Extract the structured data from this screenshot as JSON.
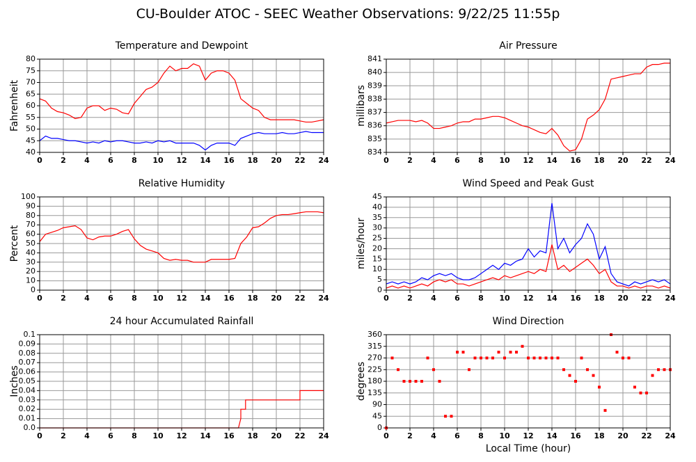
{
  "title": "CU-Boulder ATOC - SEEC Weather Observations: 9/22/25 11:55p",
  "chart_data": [
    {
      "type": "line",
      "title": "Temperature and Dewpoint",
      "ylabel": "Fahrenheit",
      "xlim": [
        0,
        24
      ],
      "xticks": [
        0,
        2,
        4,
        6,
        8,
        10,
        12,
        14,
        16,
        18,
        20,
        22,
        24
      ],
      "ylim": [
        40,
        80
      ],
      "yticks": [
        40,
        45,
        50,
        55,
        60,
        65,
        70,
        75,
        80
      ],
      "grid": true,
      "x": [
        0,
        0.5,
        1,
        1.5,
        2,
        2.5,
        3,
        3.5,
        4,
        4.5,
        5,
        5.5,
        6,
        6.5,
        7,
        7.5,
        8,
        8.5,
        9,
        9.5,
        10,
        10.5,
        11,
        11.5,
        12,
        12.5,
        13,
        13.5,
        14,
        14.5,
        15,
        15.5,
        16,
        16.5,
        17,
        17.5,
        18,
        18.5,
        19,
        19.5,
        20,
        20.5,
        21,
        21.5,
        22,
        22.5,
        23,
        23.5,
        24
      ],
      "series": [
        {
          "color": "#ff0000",
          "values": [
            63,
            62,
            59,
            57.5,
            57,
            56,
            54.5,
            55,
            59,
            60,
            60,
            58,
            59,
            58.5,
            57,
            56.5,
            61,
            64,
            67,
            68,
            70,
            74,
            77,
            75,
            76,
            76,
            78,
            77,
            71,
            74,
            75,
            75,
            74,
            71,
            63,
            61,
            59,
            58,
            55,
            54,
            54,
            54,
            54,
            54,
            53.5,
            53,
            53,
            53.5,
            54
          ]
        },
        {
          "color": "#0000ff",
          "values": [
            45,
            47,
            46,
            46,
            45.5,
            45,
            45,
            44.5,
            44,
            44.5,
            44,
            45,
            44.5,
            45,
            45,
            44.5,
            44,
            44,
            44.5,
            44,
            45,
            44.5,
            45,
            44,
            44,
            44,
            44,
            43,
            41,
            43,
            44,
            44,
            44,
            43,
            46,
            47,
            48,
            48.5,
            48,
            48,
            48,
            48.5,
            48,
            48,
            48.5,
            49,
            48.5,
            48.5,
            48.5
          ]
        }
      ]
    },
    {
      "type": "line",
      "title": "Air Pressure",
      "ylabel": "millibars",
      "xlim": [
        0,
        24
      ],
      "xticks": [
        0,
        2,
        4,
        6,
        8,
        10,
        12,
        14,
        16,
        18,
        20,
        22,
        24
      ],
      "ylim": [
        834,
        841
      ],
      "yticks": [
        834,
        835,
        836,
        837,
        838,
        839,
        840,
        841
      ],
      "grid": true,
      "x": [
        0,
        0.5,
        1,
        1.5,
        2,
        2.5,
        3,
        3.5,
        4,
        4.5,
        5,
        5.5,
        6,
        6.5,
        7,
        7.5,
        8,
        8.5,
        9,
        9.5,
        10,
        10.5,
        11,
        11.5,
        12,
        12.5,
        13,
        13.5,
        14,
        14.5,
        15,
        15.5,
        16,
        16.5,
        17,
        17.5,
        18,
        18.5,
        19,
        19.5,
        20,
        20.5,
        21,
        21.5,
        22,
        22.5,
        23,
        23.5,
        24
      ],
      "color": "#ff0000",
      "values": [
        836.2,
        836.3,
        836.4,
        836.4,
        836.4,
        836.3,
        836.4,
        836.2,
        835.8,
        835.8,
        835.9,
        836.0,
        836.2,
        836.3,
        836.3,
        836.5,
        836.5,
        836.6,
        836.7,
        836.7,
        836.6,
        836.4,
        836.2,
        836.0,
        835.9,
        835.7,
        835.5,
        835.4,
        835.8,
        835.3,
        834.5,
        834.1,
        834.2,
        835.0,
        836.5,
        836.8,
        837.2,
        838.0,
        839.5,
        839.6,
        839.7,
        839.8,
        839.9,
        839.9,
        840.4,
        840.6,
        840.6,
        840.7,
        840.7
      ]
    },
    {
      "type": "line",
      "title": "Relative Humidity",
      "ylabel": "Percent",
      "xlim": [
        0,
        24
      ],
      "xticks": [
        0,
        2,
        4,
        6,
        8,
        10,
        12,
        14,
        16,
        18,
        20,
        22,
        24
      ],
      "ylim": [
        0,
        100
      ],
      "yticks": [
        0,
        10,
        20,
        30,
        40,
        50,
        60,
        70,
        80,
        90,
        100
      ],
      "grid": true,
      "x": [
        0,
        0.5,
        1,
        1.5,
        2,
        2.5,
        3,
        3.5,
        4,
        4.5,
        5,
        5.5,
        6,
        6.5,
        7,
        7.5,
        8,
        8.5,
        9,
        9.5,
        10,
        10.5,
        11,
        11.5,
        12,
        12.5,
        13,
        13.5,
        14,
        14.5,
        15,
        15.5,
        16,
        16.5,
        17,
        17.5,
        18,
        18.5,
        19,
        19.5,
        20,
        20.5,
        21,
        21.5,
        22,
        22.5,
        23,
        23.5,
        24
      ],
      "color": "#ff0000",
      "values": [
        52,
        60,
        62,
        64,
        67,
        68,
        69,
        65,
        56,
        54,
        57,
        58,
        58,
        60,
        63,
        65,
        55,
        48,
        44,
        42,
        40,
        34,
        32,
        33,
        32,
        32,
        30,
        30,
        30,
        33,
        33,
        33,
        33,
        34,
        50,
        57,
        67,
        68,
        72,
        77,
        80,
        81,
        81,
        82,
        83,
        84,
        84,
        84,
        83
      ]
    },
    {
      "type": "line",
      "title": "Wind Speed and Peak Gust",
      "ylabel": "miles/hour",
      "xlim": [
        0,
        24
      ],
      "xticks": [
        0,
        2,
        4,
        6,
        8,
        10,
        12,
        14,
        16,
        18,
        20,
        22,
        24
      ],
      "ylim": [
        0,
        45
      ],
      "yticks": [
        0,
        5,
        10,
        15,
        20,
        25,
        30,
        35,
        40,
        45
      ],
      "grid": true,
      "x": [
        0,
        0.5,
        1,
        1.5,
        2,
        2.5,
        3,
        3.5,
        4,
        4.5,
        5,
        5.5,
        6,
        6.5,
        7,
        7.5,
        8,
        8.5,
        9,
        9.5,
        10,
        10.5,
        11,
        11.5,
        12,
        12.5,
        13,
        13.5,
        14,
        14.5,
        15,
        15.5,
        16,
        16.5,
        17,
        17.5,
        18,
        18.5,
        19,
        19.5,
        20,
        20.5,
        21,
        21.5,
        22,
        22.5,
        23,
        23.5,
        24
      ],
      "series": [
        {
          "color": "#0000ff",
          "values": [
            3,
            4,
            3,
            4,
            3,
            4,
            6,
            5,
            7,
            8,
            7,
            8,
            6,
            5,
            5,
            6,
            8,
            10,
            12,
            10,
            13,
            12,
            14,
            15,
            20,
            16,
            19,
            18,
            42,
            20,
            25,
            18,
            22,
            25,
            32,
            27,
            15,
            21,
            8,
            4,
            3,
            2,
            4,
            3,
            4,
            5,
            4,
            5,
            3
          ]
        },
        {
          "color": "#ff0000",
          "values": [
            1,
            2,
            1,
            2,
            1,
            2,
            3,
            2,
            4,
            5,
            4,
            5,
            3,
            3,
            2,
            3,
            4,
            5,
            6,
            5,
            7,
            6,
            7,
            8,
            9,
            8,
            10,
            9,
            22,
            10,
            12,
            9,
            11,
            13,
            15,
            12,
            8,
            10,
            4,
            2,
            2,
            1,
            2,
            1,
            2,
            2,
            1,
            2,
            1
          ]
        }
      ]
    },
    {
      "type": "line",
      "title": "24 hour Accumulated Rainfall",
      "ylabel": "Inches",
      "xlim": [
        0,
        24
      ],
      "xticks": [
        0,
        2,
        4,
        6,
        8,
        10,
        12,
        14,
        16,
        18,
        20,
        22,
        24
      ],
      "ylim": [
        0,
        0.1
      ],
      "yticks": [
        {
          "value": 0,
          "label": "0.0"
        },
        0.01,
        0.02,
        0.03,
        0.04,
        0.05,
        0.06,
        0.07,
        0.08,
        0.09,
        0.1
      ],
      "grid": true,
      "x": [
        0,
        16.8,
        17.0,
        17.0,
        17.4,
        17.4,
        22,
        22,
        24
      ],
      "color": "#ff0000",
      "values": [
        0,
        0,
        0.01,
        0.02,
        0.02,
        0.03,
        0.03,
        0.04,
        0.04
      ]
    },
    {
      "type": "scatter",
      "title": "Wind Direction",
      "ylabel": "degrees",
      "xlabel": "Local Time (hour)",
      "xlim": [
        0,
        24
      ],
      "xticks": [
        0,
        2,
        4,
        6,
        8,
        10,
        12,
        14,
        16,
        18,
        20,
        22,
        24
      ],
      "ylim": [
        0,
        360
      ],
      "yticks": [
        0,
        45,
        90,
        135,
        180,
        225,
        270,
        315,
        360
      ],
      "grid": true,
      "x": [
        0,
        0.5,
        1,
        1.5,
        2,
        2.5,
        3,
        3.5,
        4,
        4.5,
        5,
        5.5,
        6,
        6.5,
        7,
        7.5,
        8,
        8.5,
        9,
        9.5,
        10,
        10.5,
        11,
        11.5,
        12,
        12.5,
        13,
        13.5,
        14,
        14.5,
        15,
        15.5,
        16,
        16.5,
        17,
        17.5,
        18,
        18.5,
        19,
        19.5,
        20,
        20.5,
        21,
        21.5,
        22,
        22.5,
        23,
        23.5,
        24
      ],
      "color": "#ff0000",
      "values": [
        0,
        270,
        225,
        180,
        180,
        180,
        180,
        270,
        225,
        180,
        45,
        45,
        292.5,
        292.5,
        225,
        270,
        270,
        270,
        270,
        292.5,
        270,
        292.5,
        292.5,
        315,
        270,
        270,
        270,
        270,
        270,
        270,
        225,
        202.5,
        180,
        270,
        225,
        202.5,
        157.5,
        67.5,
        360,
        292.5,
        270,
        270,
        157.5,
        135,
        135,
        202.5,
        225,
        225,
        225
      ]
    }
  ]
}
